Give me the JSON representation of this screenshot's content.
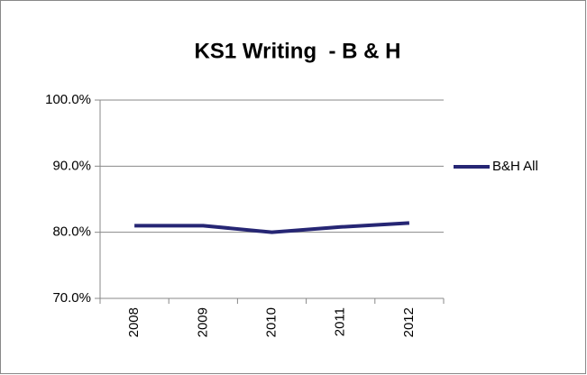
{
  "chart_data": {
    "type": "line",
    "title": "KS1 Writing  - B & H",
    "categories": [
      "2008",
      "2009",
      "2010",
      "2011",
      "2012"
    ],
    "series": [
      {
        "name": "B&H All",
        "color": "#262674",
        "values": [
          81.0,
          81.0,
          80.0,
          80.8,
          81.4
        ]
      }
    ],
    "ylim": [
      70,
      100
    ],
    "yticks": [
      {
        "value": 70,
        "label": "70.0%"
      },
      {
        "value": 80,
        "label": "80.0%"
      },
      {
        "value": 90,
        "label": "90.0%"
      },
      {
        "value": 100,
        "label": "100.0%"
      }
    ],
    "grid": true,
    "legend": "right"
  }
}
